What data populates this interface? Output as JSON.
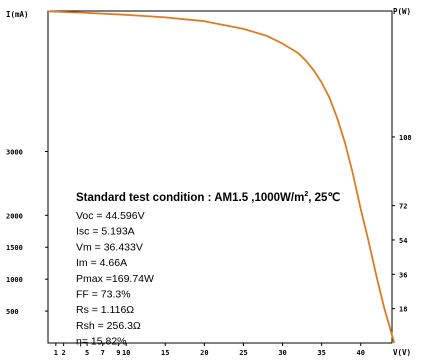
{
  "chart_data": {
    "type": "line",
    "y_axis_label": "I(mA)",
    "right_axis_label": "P(W)",
    "x_axis_label": "V(V)",
    "xlim": [
      0,
      44
    ],
    "ylim": [
      0,
      5200
    ],
    "right_ylim": [
      0,
      174
    ],
    "x_ticks": [
      1,
      2,
      5,
      7,
      9,
      10,
      15,
      20,
      25,
      30,
      35,
      40
    ],
    "x_tick_labels": [
      "1",
      "2",
      "5",
      "7",
      "9",
      "10",
      "15",
      "20",
      "25",
      "30",
      "35",
      "40"
    ],
    "y_ticks": [
      500,
      1000,
      1500,
      2000,
      3000
    ],
    "y_tick_labels": [
      "500",
      "1000",
      "1500",
      "2000",
      "3000"
    ],
    "right_ticks": [
      18,
      36,
      54,
      72,
      108
    ],
    "right_tick_labels": [
      "18",
      "36",
      "54",
      "72",
      "108"
    ],
    "grid": false,
    "series": [
      {
        "color": "#e07a1f",
        "x": [
          0,
          5,
          10,
          15,
          20,
          25,
          28,
          30,
          32,
          33,
          34,
          35,
          36,
          37,
          38,
          39,
          40,
          41,
          42,
          43,
          44.3
        ],
        "y": [
          5193,
          5170,
          5140,
          5100,
          5040,
          4920,
          4810,
          4690,
          4540,
          4420,
          4270,
          4080,
          3840,
          3520,
          3130,
          2650,
          2100,
          1600,
          1050,
          550,
          0
        ]
      }
    ],
    "annotation": {
      "title": "Standard test condition : AM1.5 ,1000W/m",
      "title_sup": "2",
      "title_end": ", 25℃",
      "params": [
        "Voc = 44.596V",
        "Isc = 5.193A",
        "Vm = 36.433V",
        "Im =  4.66A",
        "Pmax =169.74W",
        "FF =  73.3%",
        "Rs = 1.116Ω",
        "Rsh = 256.3Ω",
        "η= 15.82%"
      ]
    }
  }
}
